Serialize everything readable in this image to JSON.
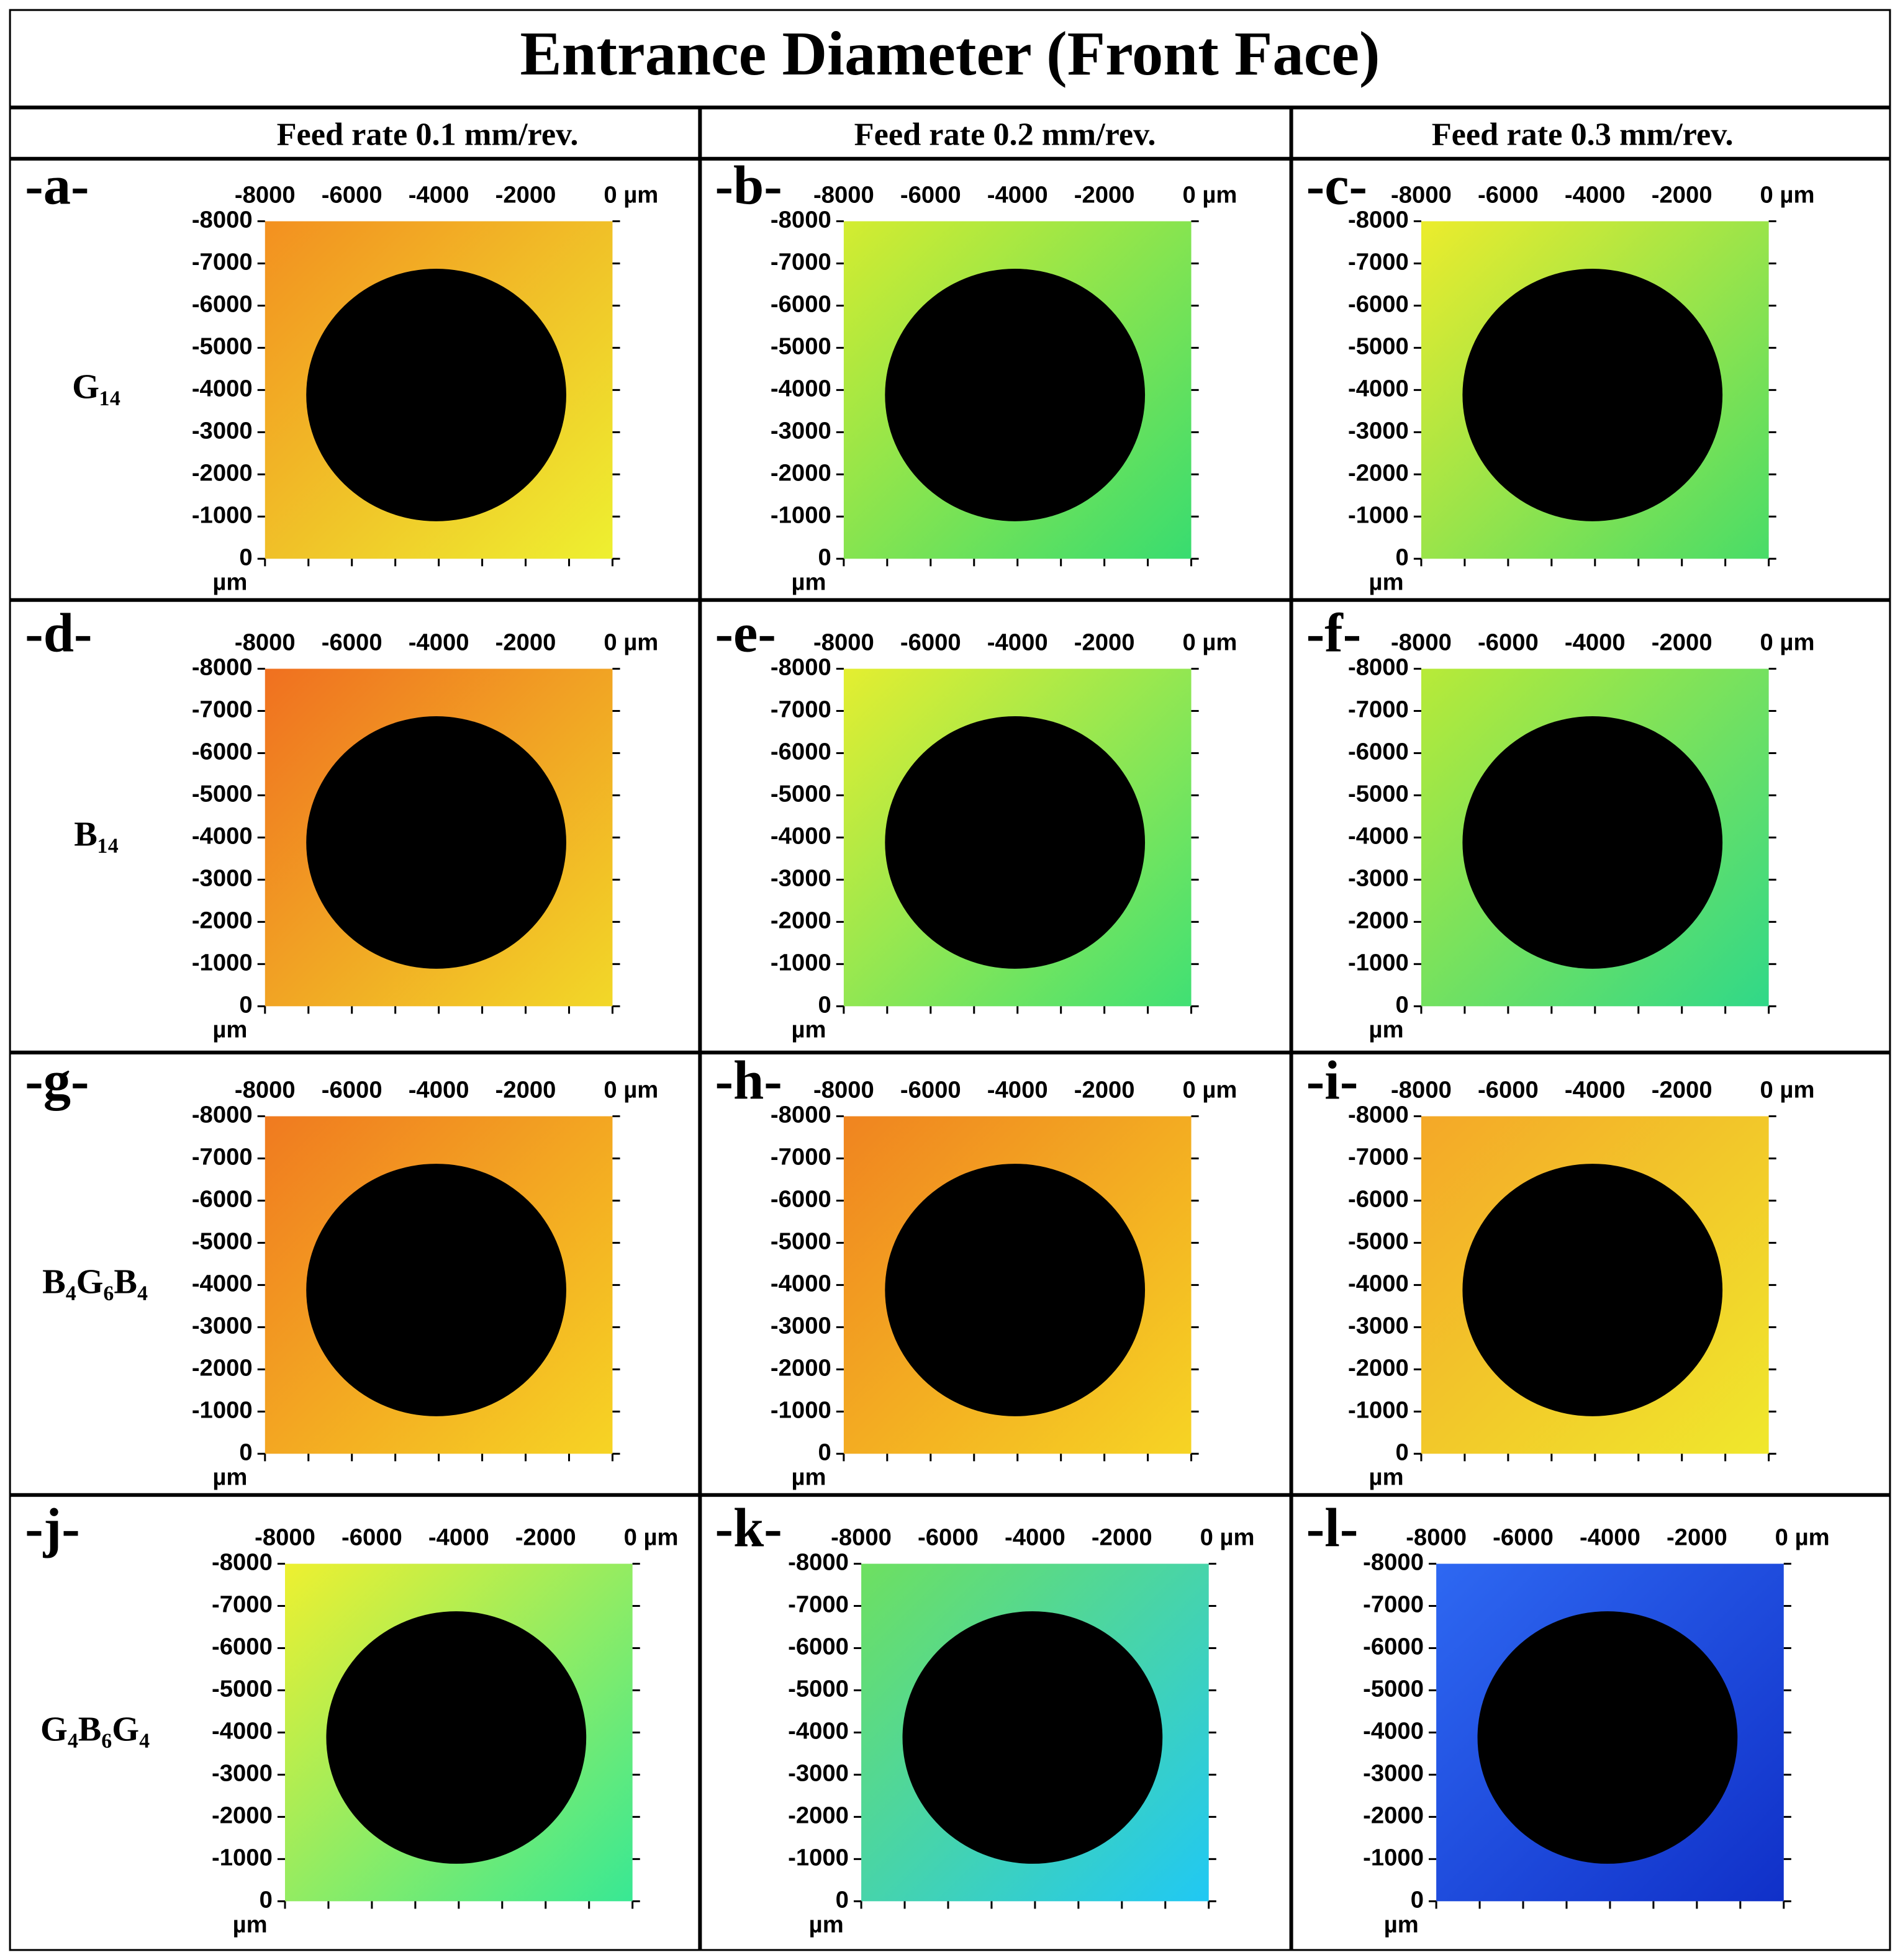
{
  "title": "Entrance Diameter (Front Face)",
  "columns": [
    "Feed rate 0.1 mm/rev.",
    "Feed rate 0.2 mm/rev.",
    "Feed rate 0.3 mm/rev."
  ],
  "rows": [
    "G₁₄",
    "B₁₄",
    "B₄G₆B₄",
    "G₄B₆G₄"
  ],
  "panels": [
    "-a-",
    "-b-",
    "-c-",
    "-d-",
    "-e-",
    "-f-",
    "-g-",
    "-h-",
    "-i-",
    "-j-",
    "-k-",
    "-l-"
  ],
  "axes": {
    "x_ticks": [
      "-8000",
      "-6000",
      "-4000",
      "-2000",
      "0 µm"
    ],
    "y_ticks": [
      "-8000",
      "-7000",
      "-6000",
      "-5000",
      "-4000",
      "-3000",
      "-2000",
      "-1000",
      "0"
    ],
    "y_unit": "µm"
  }
}
